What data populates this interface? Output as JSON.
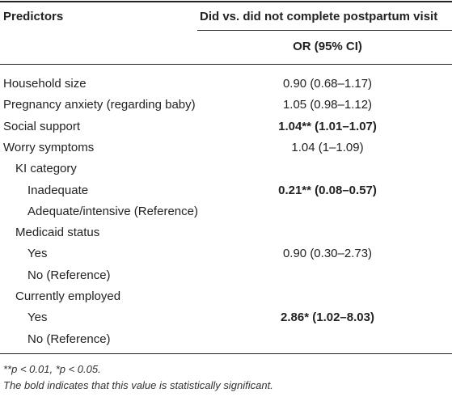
{
  "header": {
    "predictors_label": "Predictors",
    "group_label": "Did vs. did not complete postpartum visit",
    "stat_label": "OR (95% CI)"
  },
  "rows": [
    {
      "label": "Household size",
      "value": "0.90 (0.68–1.17)",
      "indent": 0,
      "bold": false
    },
    {
      "label": "Pregnancy anxiety (regarding baby)",
      "value": "1.05 (0.98–1.12)",
      "indent": 0,
      "bold": false
    },
    {
      "label": "Social support",
      "value": "1.04** (1.01–1.07)",
      "indent": 0,
      "bold": true
    },
    {
      "label": "Worry symptoms",
      "value": "1.04 (1–1.09)",
      "indent": 0,
      "bold": false
    },
    {
      "label": "KI category",
      "value": "",
      "indent": 1,
      "bold": false
    },
    {
      "label": "Inadequate",
      "value": "0.21** (0.08–0.57)",
      "indent": 2,
      "bold": true
    },
    {
      "label": "Adequate/intensive (Reference)",
      "value": "",
      "indent": 2,
      "bold": false
    },
    {
      "label": "Medicaid status",
      "value": "",
      "indent": 1,
      "bold": false
    },
    {
      "label": "Yes",
      "value": "0.90 (0.30–2.73)",
      "indent": 2,
      "bold": false
    },
    {
      "label": "No (Reference)",
      "value": "",
      "indent": 2,
      "bold": false
    },
    {
      "label": "Currently employed",
      "value": "",
      "indent": 1,
      "bold": false
    },
    {
      "label": "Yes",
      "value": "2.86* (1.02–8.03)",
      "indent": 2,
      "bold": true
    },
    {
      "label": "No (Reference)",
      "value": "",
      "indent": 2,
      "bold": false
    }
  ],
  "footnotes": {
    "significance": "**p < 0.01, *p < 0.05.",
    "bold_note": "The bold indicates that this value is statistically significant."
  },
  "colors": {
    "rule": "#222222",
    "text": "#222222"
  }
}
